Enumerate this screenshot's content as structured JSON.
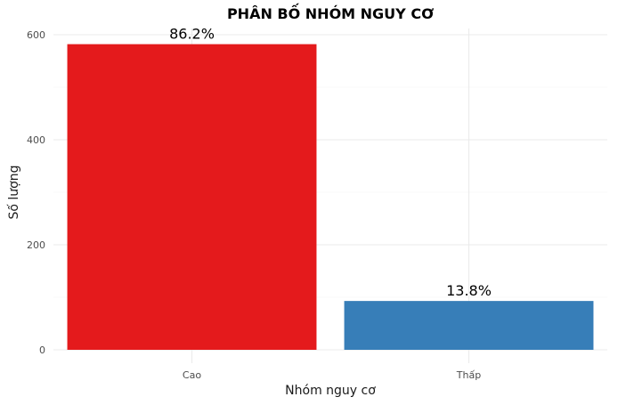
{
  "chart_data": {
    "type": "bar",
    "title": "PHÂN BỐ NHÓM NGUY CƠ",
    "xlabel": "Nhóm nguy cơ",
    "ylabel": "Số lượng",
    "categories": [
      "Cao",
      "Thấp"
    ],
    "values": [
      582,
      93
    ],
    "data_labels": [
      "86.2%",
      "13.8%"
    ],
    "colors": [
      "#E41A1C",
      "#377EB8"
    ],
    "ylim": [
      0,
      600
    ],
    "yticks": [
      0,
      200,
      400,
      600
    ],
    "ytick_labels": [
      "0",
      "200",
      "400",
      "600"
    ],
    "grid": true,
    "legend": "none"
  }
}
